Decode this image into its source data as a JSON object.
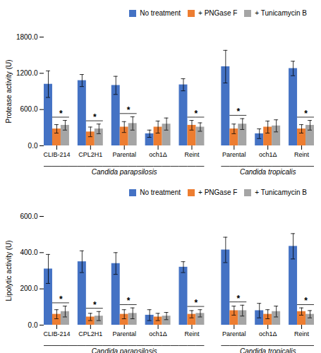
{
  "chart_data": [
    {
      "type": "bar",
      "ylabel": "Protease activity (U)",
      "categories": [
        "CLIB-214",
        "CPL2H1",
        "Parental",
        "och1Δ",
        "Reint",
        "Parental",
        "och1Δ",
        "Reint"
      ],
      "series": [
        {
          "name": "No treatment",
          "color": "#4472C4",
          "values": [
            1020,
            1080,
            1000,
            200,
            1010,
            1310,
            200,
            1280
          ],
          "errors": [
            220,
            100,
            150,
            60,
            100,
            270,
            80,
            120
          ]
        },
        {
          "name": "+ PNGase F",
          "color": "#ED7D31",
          "values": [
            280,
            230,
            310,
            310,
            340,
            280,
            310,
            280
          ],
          "errors": [
            70,
            80,
            90,
            100,
            80,
            80,
            100,
            70
          ]
        },
        {
          "name": "+ Tunicamycin B",
          "color": "#A5A5A5",
          "values": [
            340,
            280,
            370,
            360,
            310,
            360,
            330,
            340
          ],
          "errors": [
            80,
            80,
            110,
            100,
            70,
            90,
            100,
            80
          ]
        }
      ],
      "ylim": [
        0,
        1800
      ],
      "yticks": [
        {
          "value": 0,
          "label": "0.0"
        },
        {
          "value": 600,
          "label": "600.0"
        },
        {
          "value": 1200,
          "label": "1200.0"
        },
        {
          "value": 1800,
          "label": "1800.0"
        }
      ],
      "legend": "upper right",
      "annotations": [
        {
          "text": "*",
          "x": 0
        },
        {
          "text": "*",
          "x": 1
        },
        {
          "text": "*",
          "x": 2
        },
        {
          "text": "*",
          "x": 4
        },
        {
          "text": "*",
          "x": 5
        },
        {
          "text": "*",
          "x": 7
        },
        {
          "text": "Candida parapsilosis",
          "x_range": [
            0,
            4
          ]
        },
        {
          "text": "Candida tropicalis",
          "x_range": [
            5,
            7
          ]
        }
      ]
    },
    {
      "type": "bar",
      "ylabel": "Lipolytic activity (U)",
      "categories": [
        "CLIB-214",
        "CPL2H1",
        "Parental",
        "och1Δ",
        "Reint",
        "Parental",
        "och1Δ",
        "Reint"
      ],
      "series": [
        {
          "name": "No treatment",
          "color": "#4472C4",
          "values": [
            310,
            350,
            340,
            55,
            320,
            415,
            80,
            435
          ],
          "errors": [
            80,
            60,
            60,
            30,
            30,
            70,
            40,
            70
          ]
        },
        {
          "name": "+ PNGase F",
          "color": "#ED7D31",
          "values": [
            60,
            45,
            60,
            45,
            60,
            80,
            60,
            75
          ],
          "errors": [
            25,
            20,
            25,
            20,
            20,
            25,
            25,
            20
          ]
        },
        {
          "name": "+ Tunicamycin B",
          "color": "#A5A5A5",
          "values": [
            75,
            50,
            65,
            50,
            65,
            80,
            75,
            60
          ],
          "errors": [
            30,
            25,
            30,
            20,
            20,
            30,
            30,
            20
          ]
        }
      ],
      "ylim": [
        0,
        600
      ],
      "yticks": [
        {
          "value": 0,
          "label": "0.0"
        },
        {
          "value": 200,
          "label": "200.0"
        },
        {
          "value": 400,
          "label": "400.0"
        },
        {
          "value": 600,
          "label": "600.0"
        }
      ],
      "legend": "upper right",
      "annotations": [
        {
          "text": "*",
          "x": 0
        },
        {
          "text": "*",
          "x": 1
        },
        {
          "text": "*",
          "x": 2
        },
        {
          "text": "*",
          "x": 4
        },
        {
          "text": "*",
          "x": 5
        },
        {
          "text": "*",
          "x": 7
        },
        {
          "text": "Candida parapsilosis",
          "x_range": [
            0,
            4
          ]
        },
        {
          "text": "Candida tropicalis",
          "x_range": [
            5,
            7
          ]
        }
      ]
    }
  ]
}
